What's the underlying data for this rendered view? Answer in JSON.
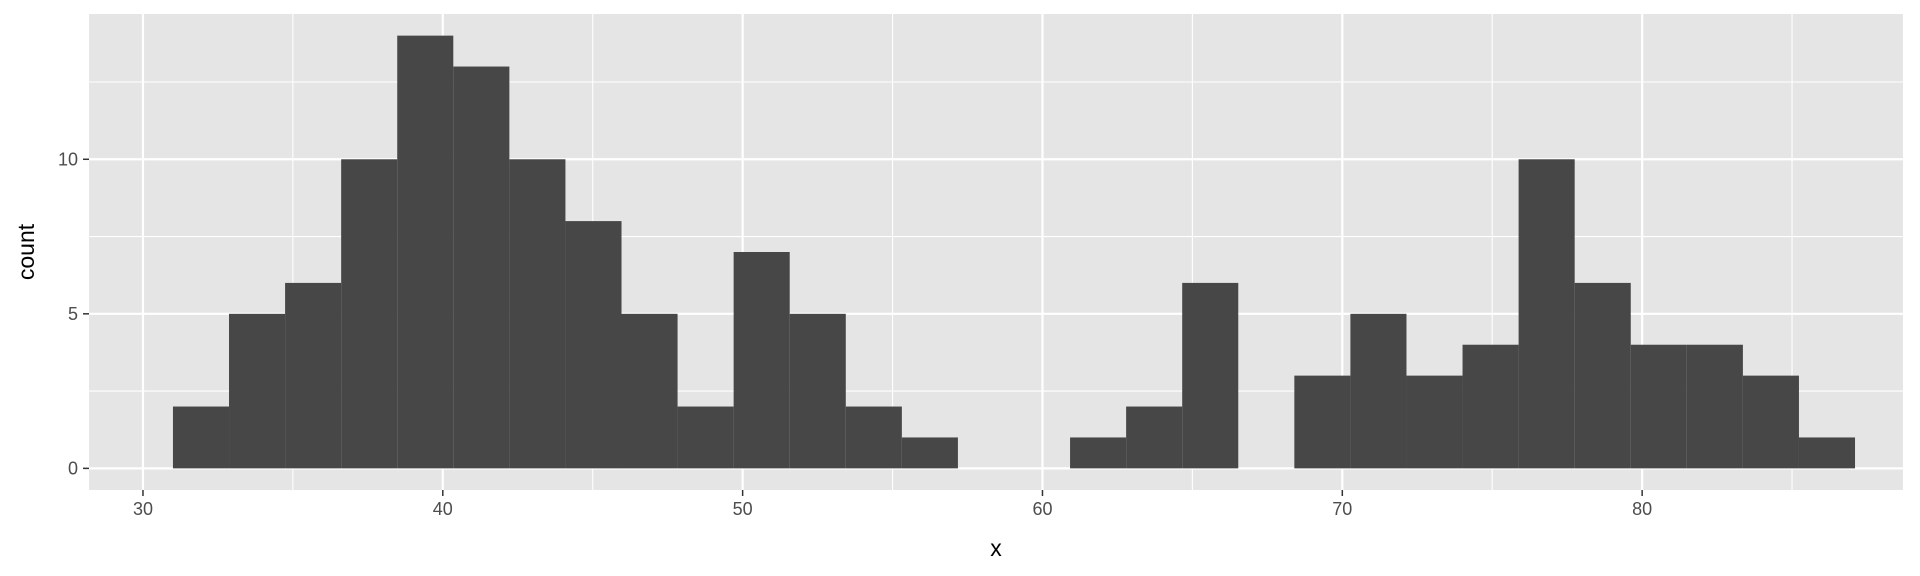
{
  "chart_data": {
    "type": "bar",
    "subtype": "histogram",
    "title": "",
    "xlabel": "x",
    "ylabel": "count",
    "xlim": [
      28.2,
      88.7
    ],
    "ylim": [
      -0.7,
      14.7
    ],
    "x_ticks": [
      30,
      40,
      50,
      60,
      70,
      80
    ],
    "y_ticks": [
      0,
      5,
      10
    ],
    "x_minor_ticks": [
      35,
      45,
      55,
      65,
      75,
      85
    ],
    "y_minor_ticks": [
      2.5,
      7.5,
      12.5
    ],
    "grid": true,
    "legend": "none",
    "bin_width": 1.87,
    "bins": [
      {
        "x0": 31.0,
        "x1": 32.87,
        "count": 2
      },
      {
        "x0": 32.87,
        "x1": 34.74,
        "count": 5
      },
      {
        "x0": 34.74,
        "x1": 36.61,
        "count": 6
      },
      {
        "x0": 36.61,
        "x1": 38.48,
        "count": 10
      },
      {
        "x0": 38.48,
        "x1": 40.35,
        "count": 14
      },
      {
        "x0": 40.35,
        "x1": 42.22,
        "count": 13
      },
      {
        "x0": 42.22,
        "x1": 44.09,
        "count": 10
      },
      {
        "x0": 44.09,
        "x1": 45.96,
        "count": 8
      },
      {
        "x0": 45.96,
        "x1": 47.83,
        "count": 5
      },
      {
        "x0": 47.83,
        "x1": 49.7,
        "count": 2
      },
      {
        "x0": 49.7,
        "x1": 51.57,
        "count": 7
      },
      {
        "x0": 51.57,
        "x1": 53.44,
        "count": 5
      },
      {
        "x0": 53.44,
        "x1": 55.31,
        "count": 2
      },
      {
        "x0": 55.31,
        "x1": 57.18,
        "count": 1
      },
      {
        "x0": 57.18,
        "x1": 59.05,
        "count": 0
      },
      {
        "x0": 59.05,
        "x1": 60.92,
        "count": 0
      },
      {
        "x0": 60.92,
        "x1": 62.79,
        "count": 1
      },
      {
        "x0": 62.79,
        "x1": 64.66,
        "count": 2
      },
      {
        "x0": 64.66,
        "x1": 66.53,
        "count": 6
      },
      {
        "x0": 66.53,
        "x1": 68.4,
        "count": 0
      },
      {
        "x0": 68.4,
        "x1": 70.27,
        "count": 3
      },
      {
        "x0": 70.27,
        "x1": 72.14,
        "count": 5
      },
      {
        "x0": 72.14,
        "x1": 74.01,
        "count": 3
      },
      {
        "x0": 74.01,
        "x1": 75.88,
        "count": 4
      },
      {
        "x0": 75.88,
        "x1": 77.75,
        "count": 10
      },
      {
        "x0": 77.75,
        "x1": 79.62,
        "count": 6
      },
      {
        "x0": 79.62,
        "x1": 81.49,
        "count": 4
      },
      {
        "x0": 81.49,
        "x1": 83.36,
        "count": 4
      },
      {
        "x0": 83.36,
        "x1": 85.23,
        "count": 3
      },
      {
        "x0": 85.23,
        "x1": 87.1,
        "count": 1
      }
    ],
    "colors": {
      "panel_background": "#e5e5e5",
      "grid_line": "#ffffff",
      "bar_fill": "#474747",
      "tick_text": "#4d4d4d",
      "tick_mark": "#333333",
      "axis_title": "#000000"
    }
  }
}
